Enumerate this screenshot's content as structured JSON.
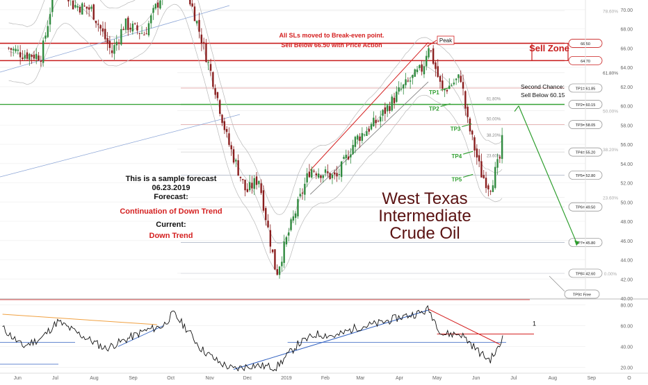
{
  "chart_data": [
    {
      "type": "candlestick",
      "title": "West Texas Intermediate Crude Oil",
      "title_lines": [
        "West Texas",
        "Intermediate",
        "Crude Oil"
      ],
      "ylim": [
        40,
        71
      ],
      "y_ticks": [
        "70.00",
        "68.00",
        "66.00",
        "64.00",
        "62.00",
        "60.00",
        "58.00",
        "56.00",
        "54.00",
        "52.00",
        "50.00",
        "48.00",
        "46.00",
        "44.00",
        "42.00",
        "40.00"
      ],
      "x_ticks": [
        "Jun",
        "Jul",
        "Aug",
        "Sep",
        "Oct",
        "Nov",
        "Dec",
        "2019",
        "Feb",
        "Mar",
        "Apr",
        "May",
        "Jun",
        "Jul",
        "Aug",
        "Sep",
        "O"
      ],
      "price_path": [
        {
          "date": "2018-05-25",
          "value": 66.0
        },
        {
          "date": "2018-06-05",
          "value": 65.4
        },
        {
          "date": "2018-06-20",
          "value": 65.2
        },
        {
          "date": "2018-07-03",
          "value": 74.0
        },
        {
          "date": "2018-07-15",
          "value": 70.5
        },
        {
          "date": "2018-07-30",
          "value": 70.0
        },
        {
          "date": "2018-08-15",
          "value": 65.5
        },
        {
          "date": "2018-08-25",
          "value": 68.5
        },
        {
          "date": "2018-09-10",
          "value": 67.5
        },
        {
          "date": "2018-09-25",
          "value": 72.0
        },
        {
          "date": "2018-10-03",
          "value": 76.0
        },
        {
          "date": "2018-10-20",
          "value": 69.5
        },
        {
          "date": "2018-11-05",
          "value": 62.0
        },
        {
          "date": "2018-11-15",
          "value": 56.5
        },
        {
          "date": "2018-11-30",
          "value": 51.0
        },
        {
          "date": "2018-12-10",
          "value": 52.5
        },
        {
          "date": "2018-12-24",
          "value": 42.5
        },
        {
          "date": "2019-01-02",
          "value": 46.5
        },
        {
          "date": "2019-01-20",
          "value": 53.5
        },
        {
          "date": "2019-02-10",
          "value": 52.5
        },
        {
          "date": "2019-02-25",
          "value": 56.5
        },
        {
          "date": "2019-03-15",
          "value": 58.5
        },
        {
          "date": "2019-04-01",
          "value": 61.5
        },
        {
          "date": "2019-04-20",
          "value": 64.0
        },
        {
          "date": "2019-04-24",
          "value": 66.5
        },
        {
          "date": "2019-05-05",
          "value": 61.5
        },
        {
          "date": "2019-05-20",
          "value": 63.0
        },
        {
          "date": "2019-05-25",
          "value": 58.5
        },
        {
          "date": "2019-06-05",
          "value": 53.0
        },
        {
          "date": "2019-06-12",
          "value": 51.5
        },
        {
          "date": "2019-06-20",
          "value": 54.5
        },
        {
          "date": "2019-06-23",
          "value": 57.5
        }
      ],
      "forecast_path": [
        {
          "date": "2019-07-05",
          "value": 60.0
        },
        {
          "date": "2019-08-20",
          "value": 45.8
        }
      ],
      "levels": [
        {
          "label": "TP1= 61.85",
          "value": 61.85,
          "color": "#e0a0a0"
        },
        {
          "label": "TP2= 60.15",
          "value": 60.15,
          "color": "#2e9e2e"
        },
        {
          "label": "TP3= 58.05",
          "value": 58.05,
          "color": "#e0a0a0"
        },
        {
          "label": "TP4= 55.20",
          "value": 55.2,
          "color": "#d0d0d0"
        },
        {
          "label": "TP5= 52.80",
          "value": 52.8,
          "color": "#b0b8c8"
        },
        {
          "label": "TP6= 49.50",
          "value": 49.5,
          "color": "#d0d0d0"
        },
        {
          "label": "TP7= 45.80",
          "value": 45.8,
          "color": "#b0b8c8"
        },
        {
          "label": "TP8= 42.60",
          "value": 42.6,
          "color": "#b0b8c8"
        }
      ],
      "zone_levels": [
        {
          "label": "66.50",
          "value": 66.5
        },
        {
          "label": "64.70",
          "value": 64.7
        }
      ],
      "tp9_label": "TP9= Free",
      "fib_labels": [
        {
          "label": "78.60%",
          "value": 69.9
        },
        {
          "label": "61.80%",
          "value": 63.45
        },
        {
          "label": "50.00%",
          "value": 59.5
        },
        {
          "label": "38.20%",
          "value": 55.5
        },
        {
          "label": "23.60%",
          "value": 50.5
        },
        {
          "label": "0.00%",
          "value": 42.6
        }
      ],
      "fib_inner": [
        {
          "label": "61.80%",
          "value": 60.8
        },
        {
          "label": "50.00%",
          "value": 58.7
        },
        {
          "label": "38.20%",
          "value": 57.0
        },
        {
          "label": "23.60%",
          "value": 54.9
        }
      ],
      "tp_markers": [
        {
          "label": "TP1",
          "date": "2019-05-06",
          "value": 61.85
        },
        {
          "label": "TP2",
          "date": "2019-05-06",
          "value": 60.15
        },
        {
          "label": "TP3",
          "date": "2019-05-23",
          "value": 58.05
        },
        {
          "label": "TP4",
          "date": "2019-05-24",
          "value": 55.2
        },
        {
          "label": "TP5",
          "date": "2019-05-24",
          "value": 52.8
        }
      ],
      "annotations": {
        "sl_note": "All SLs moved to Break-even point.",
        "sell_note": "Sell Below 66.50 with Price Action",
        "peak": "Peak",
        "sell_zone": "Sell Zone",
        "second_chance_1": "Second Chance:",
        "second_chance_2": "Sell Below 60.15",
        "sample_1": "This is a sample forecast",
        "sample_2": "06.23.2019",
        "forecast_label": "Forecast:",
        "forecast_value": "Continuation of Down Trend",
        "current_label": "Current:",
        "current_value": "Down Trend"
      },
      "colors": {
        "bull": "#2f8a3e",
        "bear": "#8a1e1e",
        "red_line": "#d42020",
        "green_line": "#2e9e2e",
        "sell_zone": "#c81c1c",
        "title": "#5a1212"
      }
    },
    {
      "type": "line",
      "ylim": [
        15,
        85
      ],
      "y_ticks": [
        "80.00",
        "60.00",
        "40.00",
        "20.00"
      ],
      "marker_label": "1",
      "rsi_path": [
        {
          "date": "2018-05-20",
          "value": 58
        },
        {
          "date": "2018-06-05",
          "value": 40
        },
        {
          "date": "2018-06-20",
          "value": 48
        },
        {
          "date": "2018-07-03",
          "value": 64
        },
        {
          "date": "2018-07-20",
          "value": 52
        },
        {
          "date": "2018-08-10",
          "value": 38
        },
        {
          "date": "2018-08-25",
          "value": 46
        },
        {
          "date": "2018-09-10",
          "value": 55
        },
        {
          "date": "2018-09-25",
          "value": 60
        },
        {
          "date": "2018-10-03",
          "value": 72
        },
        {
          "date": "2018-10-15",
          "value": 55
        },
        {
          "date": "2018-10-25",
          "value": 38
        },
        {
          "date": "2018-11-08",
          "value": 25
        },
        {
          "date": "2018-11-20",
          "value": 18
        },
        {
          "date": "2018-12-05",
          "value": 22
        },
        {
          "date": "2018-12-24",
          "value": 20
        },
        {
          "date": "2019-01-10",
          "value": 42
        },
        {
          "date": "2019-01-25",
          "value": 52
        },
        {
          "date": "2019-02-10",
          "value": 50
        },
        {
          "date": "2019-02-25",
          "value": 58
        },
        {
          "date": "2019-03-15",
          "value": 62
        },
        {
          "date": "2019-04-01",
          "value": 68
        },
        {
          "date": "2019-04-20",
          "value": 73
        },
        {
          "date": "2019-04-24",
          "value": 76
        },
        {
          "date": "2019-05-05",
          "value": 52
        },
        {
          "date": "2019-05-20",
          "value": 52
        },
        {
          "date": "2019-06-05",
          "value": 33
        },
        {
          "date": "2019-06-12",
          "value": 27
        },
        {
          "date": "2019-06-20",
          "value": 40
        },
        {
          "date": "2019-06-23",
          "value": 54
        }
      ],
      "colors": {
        "rsi": "#111111",
        "red": "#d42020",
        "blue": "#3060c0",
        "orange": "#f0a040"
      }
    }
  ]
}
